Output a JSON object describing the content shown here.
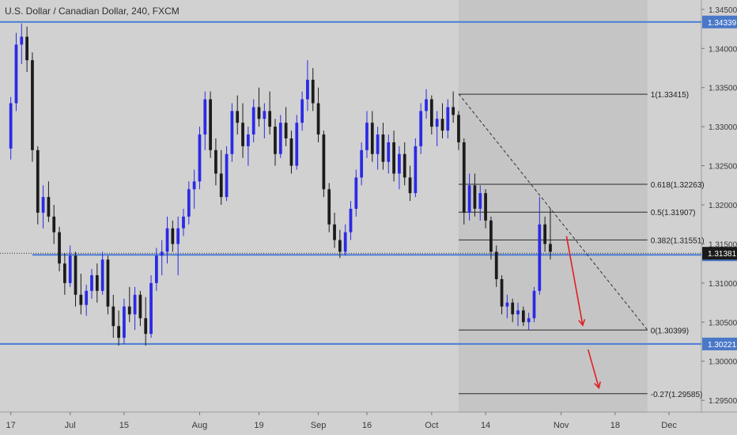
{
  "header": {
    "title": "U.S. Dollar / Canadian Dollar, 240, FXCM"
  },
  "colors": {
    "background": "#d1d1d1",
    "shaded_region": "#c5c5c5",
    "candle_up": "#2a2ae6",
    "candle_down": "#1c1c1c",
    "level_line": "#4a7cd6",
    "fib_line": "#2a2a2a",
    "arrow": "#e02020",
    "axis_text": "#3a3a3a",
    "label_bg": "#4a78c8",
    "label_dark_bg": "#1a1a1a",
    "label_text": "#ffffff"
  },
  "chart_data": {
    "type": "candlestick",
    "title": "U.S. Dollar / Canadian Dollar, 240, FXCM",
    "x_tick_labels": [
      "17",
      "Jul",
      "15",
      "Aug",
      "19",
      "Sep",
      "16",
      "Oct",
      "14",
      "Nov",
      "18",
      "Dec"
    ],
    "x_tick_index": [
      0,
      11,
      21,
      35,
      46,
      57,
      66,
      78,
      88,
      102,
      112,
      122
    ],
    "x_index_range": [
      -2,
      128
    ],
    "y_tick_labels": [
      "1.34500",
      "1.34000",
      "1.33500",
      "1.33000",
      "1.32500",
      "1.32000",
      "1.31500",
      "1.31000",
      "1.30500",
      "1.30000",
      "1.29500"
    ],
    "ylim": [
      1.2935,
      1.3462
    ],
    "horizontal_levels": [
      {
        "value": 1.34339,
        "label": "1.34339",
        "from_index": -2
      },
      {
        "value": 1.31361,
        "label": "1.31361",
        "from_index": 4
      },
      {
        "value": 1.30221,
        "label": "1.30221",
        "from_index": -2
      }
    ],
    "last_price": {
      "value": 1.31381,
      "label": "1.31381"
    },
    "shaded_region": {
      "from_index": 83,
      "to_index": 118
    },
    "fibonacci": {
      "from_index": 83,
      "to_index": 118,
      "levels": [
        {
          "value": 1.33415,
          "label": "1(1.33415)"
        },
        {
          "value": 1.32263,
          "label": "0.618(1.32263)"
        },
        {
          "value": 1.31907,
          "label": "0.5(1.31907)"
        },
        {
          "value": 1.31551,
          "label": "0.382(1.31551)"
        },
        {
          "value": 1.30399,
          "label": "0(1.30399)"
        },
        {
          "value": 1.29585,
          "label": "-0.27(1.29585)"
        }
      ]
    },
    "trend_line": {
      "from": [
        83,
        1.3342
      ],
      "to": [
        118,
        1.304
      ]
    },
    "arrows": [
      {
        "from": [
          103,
          1.316
        ],
        "to": [
          106,
          1.3046
        ]
      },
      {
        "from": [
          107,
          1.3015
        ],
        "to": [
          109,
          1.2966
        ]
      }
    ],
    "ohlc": [
      [
        1.3272,
        1.3338,
        1.3258,
        1.333
      ],
      [
        1.333,
        1.342,
        1.332,
        1.3405
      ],
      [
        1.3405,
        1.3432,
        1.338,
        1.3415
      ],
      [
        1.3415,
        1.3428,
        1.337,
        1.3385
      ],
      [
        1.3385,
        1.3395,
        1.3255,
        1.327
      ],
      [
        1.327,
        1.3275,
        1.3175,
        1.319
      ],
      [
        1.319,
        1.3225,
        1.317,
        1.321
      ],
      [
        1.321,
        1.323,
        1.3178,
        1.3185
      ],
      [
        1.3185,
        1.32,
        1.315,
        1.3165
      ],
      [
        1.3165,
        1.3172,
        1.3115,
        1.3125
      ],
      [
        1.3125,
        1.3138,
        1.3085,
        1.31
      ],
      [
        1.31,
        1.3148,
        1.3095,
        1.3135
      ],
      [
        1.3135,
        1.314,
        1.307,
        1.3085
      ],
      [
        1.3085,
        1.3112,
        1.306,
        1.3072
      ],
      [
        1.3072,
        1.3098,
        1.3058,
        1.309
      ],
      [
        1.309,
        1.3118,
        1.308,
        1.311
      ],
      [
        1.311,
        1.3125,
        1.3075,
        1.309
      ],
      [
        1.309,
        1.314,
        1.3085,
        1.313
      ],
      [
        1.313,
        1.3135,
        1.306,
        1.307
      ],
      [
        1.307,
        1.3085,
        1.303,
        1.3045
      ],
      [
        1.3045,
        1.3065,
        1.302,
        1.303
      ],
      [
        1.303,
        1.308,
        1.3022,
        1.307
      ],
      [
        1.307,
        1.3095,
        1.305,
        1.306
      ],
      [
        1.306,
        1.3095,
        1.304,
        1.3085
      ],
      [
        1.3085,
        1.309,
        1.3045,
        1.3055
      ],
      [
        1.3055,
        1.3082,
        1.302,
        1.3035
      ],
      [
        1.3035,
        1.311,
        1.303,
        1.31
      ],
      [
        1.31,
        1.3145,
        1.309,
        1.3135
      ],
      [
        1.3135,
        1.3155,
        1.311,
        1.314
      ],
      [
        1.314,
        1.3185,
        1.3125,
        1.317
      ],
      [
        1.317,
        1.318,
        1.314,
        1.315
      ],
      [
        1.315,
        1.3185,
        1.311,
        1.317
      ],
      [
        1.317,
        1.3195,
        1.316,
        1.3185
      ],
      [
        1.3185,
        1.323,
        1.3175,
        1.322
      ],
      [
        1.322,
        1.3245,
        1.3195,
        1.323
      ],
      [
        1.323,
        1.33,
        1.322,
        1.329
      ],
      [
        1.329,
        1.3345,
        1.327,
        1.3335
      ],
      [
        1.3335,
        1.3345,
        1.326,
        1.327
      ],
      [
        1.327,
        1.3285,
        1.3225,
        1.324
      ],
      [
        1.324,
        1.327,
        1.32,
        1.321
      ],
      [
        1.321,
        1.3275,
        1.3205,
        1.3265
      ],
      [
        1.3265,
        1.333,
        1.3255,
        1.332
      ],
      [
        1.332,
        1.334,
        1.329,
        1.3305
      ],
      [
        1.3305,
        1.333,
        1.326,
        1.3275
      ],
      [
        1.3275,
        1.33,
        1.325,
        1.329
      ],
      [
        1.329,
        1.3335,
        1.328,
        1.3325
      ],
      [
        1.3325,
        1.335,
        1.33,
        1.331
      ],
      [
        1.331,
        1.333,
        1.3285,
        1.332
      ],
      [
        1.332,
        1.3345,
        1.329,
        1.33
      ],
      [
        1.33,
        1.331,
        1.325,
        1.3265
      ],
      [
        1.3265,
        1.3315,
        1.326,
        1.3305
      ],
      [
        1.3305,
        1.3325,
        1.3275,
        1.3285
      ],
      [
        1.3285,
        1.3295,
        1.324,
        1.325
      ],
      [
        1.325,
        1.3315,
        1.3245,
        1.3305
      ],
      [
        1.3305,
        1.3345,
        1.3295,
        1.3335
      ],
      [
        1.3335,
        1.3385,
        1.332,
        1.336
      ],
      [
        1.336,
        1.3375,
        1.332,
        1.333
      ],
      [
        1.333,
        1.335,
        1.328,
        1.329
      ],
      [
        1.329,
        1.3295,
        1.321,
        1.322
      ],
      [
        1.322,
        1.3228,
        1.3165,
        1.3175
      ],
      [
        1.3175,
        1.319,
        1.3145,
        1.3155
      ],
      [
        1.3155,
        1.3168,
        1.3132,
        1.314
      ],
      [
        1.314,
        1.3175,
        1.3135,
        1.3165
      ],
      [
        1.3165,
        1.3205,
        1.3155,
        1.3195
      ],
      [
        1.3195,
        1.3245,
        1.3185,
        1.3235
      ],
      [
        1.3235,
        1.328,
        1.3225,
        1.327
      ],
      [
        1.327,
        1.332,
        1.326,
        1.3305
      ],
      [
        1.3305,
        1.332,
        1.3255,
        1.3265
      ],
      [
        1.3265,
        1.33,
        1.3245,
        1.329
      ],
      [
        1.329,
        1.3305,
        1.3245,
        1.3255
      ],
      [
        1.3255,
        1.329,
        1.324,
        1.328
      ],
      [
        1.328,
        1.3295,
        1.323,
        1.324
      ],
      [
        1.324,
        1.3275,
        1.322,
        1.3265
      ],
      [
        1.3265,
        1.328,
        1.3225,
        1.3235
      ],
      [
        1.3235,
        1.325,
        1.3205,
        1.3215
      ],
      [
        1.3215,
        1.3285,
        1.321,
        1.3275
      ],
      [
        1.3275,
        1.333,
        1.3265,
        1.332
      ],
      [
        1.332,
        1.3348,
        1.331,
        1.3335
      ],
      [
        1.3335,
        1.334,
        1.329,
        1.33
      ],
      [
        1.33,
        1.332,
        1.3275,
        1.331
      ],
      [
        1.331,
        1.333,
        1.3285,
        1.3295
      ],
      [
        1.3295,
        1.3335,
        1.3285,
        1.3325
      ],
      [
        1.3325,
        1.3345,
        1.3305,
        1.3315
      ],
      [
        1.3315,
        1.332,
        1.327,
        1.328
      ],
      [
        1.328,
        1.3285,
        1.3175,
        1.319
      ],
      [
        1.319,
        1.324,
        1.318,
        1.3225
      ],
      [
        1.3225,
        1.324,
        1.3185,
        1.3195
      ],
      [
        1.3195,
        1.3225,
        1.318,
        1.3215
      ],
      [
        1.3215,
        1.322,
        1.317,
        1.318
      ],
      [
        1.318,
        1.3185,
        1.313,
        1.314
      ],
      [
        1.314,
        1.3148,
        1.3095,
        1.3105
      ],
      [
        1.3105,
        1.311,
        1.306,
        1.307
      ],
      [
        1.307,
        1.3085,
        1.3055,
        1.3075
      ],
      [
        1.3075,
        1.308,
        1.305,
        1.306
      ],
      [
        1.306,
        1.3075,
        1.3045,
        1.3065
      ],
      [
        1.3065,
        1.307,
        1.3045,
        1.305
      ],
      [
        1.305,
        1.3062,
        1.304,
        1.3055
      ],
      [
        1.3055,
        1.3095,
        1.305,
        1.309
      ],
      [
        1.309,
        1.321,
        1.3085,
        1.3175
      ],
      [
        1.3175,
        1.3185,
        1.314,
        1.315
      ],
      [
        1.315,
        1.3195,
        1.313,
        1.314
      ]
    ]
  }
}
